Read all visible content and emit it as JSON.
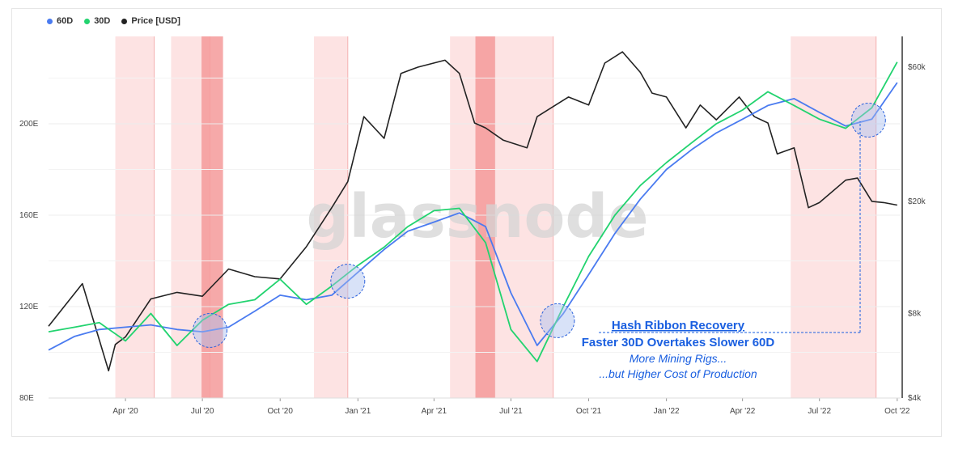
{
  "legend": [
    {
      "label": "60D",
      "color": "#4a7bf0"
    },
    {
      "label": "30D",
      "color": "#22d36f"
    },
    {
      "label": "Price [USD]",
      "color": "#222222"
    }
  ],
  "watermark": "glassnode",
  "chart_data": {
    "type": "line",
    "title": "",
    "x_tick_labels": [
      "Apr '20",
      "Jul '20",
      "Oct '20",
      "Jan '21",
      "Apr '21",
      "Jul '21",
      "Oct '21",
      "Jan '22",
      "Apr '22",
      "Jul '22",
      "Oct '22"
    ],
    "left_axis": {
      "unit": "E (hash rate)",
      "range": [
        80,
        240
      ],
      "tick_labels": [
        "80E",
        "120E",
        "160E",
        "200E"
      ]
    },
    "right_axis": {
      "unit": "USD (log)",
      "tick_labels": [
        "$4k",
        "$8k",
        "$20k",
        "$60k"
      ]
    },
    "x_range": [
      "2020-01-01",
      "2022-10-05"
    ],
    "series": [
      {
        "name": "60D",
        "axis": "left",
        "color": "#4a7bf0",
        "x": [
          "2020-01-01",
          "2020-02-01",
          "2020-03-01",
          "2020-04-01",
          "2020-05-01",
          "2020-06-01",
          "2020-07-01",
          "2020-08-01",
          "2020-09-01",
          "2020-10-01",
          "2020-11-01",
          "2020-12-01",
          "2021-01-01",
          "2021-02-01",
          "2021-03-01",
          "2021-04-01",
          "2021-05-01",
          "2021-06-01",
          "2021-07-01",
          "2021-08-01",
          "2021-09-01",
          "2021-10-01",
          "2021-11-01",
          "2021-12-01",
          "2022-01-01",
          "2022-02-01",
          "2022-03-01",
          "2022-04-01",
          "2022-05-01",
          "2022-06-01",
          "2022-07-01",
          "2022-08-01",
          "2022-09-01",
          "2022-10-01"
        ],
        "values": [
          101,
          107,
          110,
          111,
          112,
          110,
          109,
          111,
          118,
          125,
          123,
          125,
          135,
          145,
          153,
          157,
          161,
          155,
          126,
          103,
          117,
          134,
          152,
          167,
          180,
          189,
          196,
          202,
          208,
          211,
          205,
          199,
          202,
          218
        ]
      },
      {
        "name": "30D",
        "axis": "left",
        "color": "#22d36f",
        "x": [
          "2020-01-01",
          "2020-02-01",
          "2020-03-01",
          "2020-04-01",
          "2020-05-01",
          "2020-06-01",
          "2020-07-01",
          "2020-08-01",
          "2020-09-01",
          "2020-10-01",
          "2020-11-01",
          "2020-12-01",
          "2021-01-01",
          "2021-02-01",
          "2021-03-01",
          "2021-04-01",
          "2021-05-01",
          "2021-06-01",
          "2021-07-01",
          "2021-08-01",
          "2021-09-01",
          "2021-10-01",
          "2021-11-01",
          "2021-12-01",
          "2022-01-01",
          "2022-02-01",
          "2022-03-01",
          "2022-04-01",
          "2022-05-01",
          "2022-06-01",
          "2022-07-01",
          "2022-08-01",
          "2022-09-01",
          "2022-10-01"
        ],
        "values": [
          109,
          111,
          113,
          105,
          117,
          103,
          114,
          121,
          123,
          132,
          121,
          129,
          138,
          146,
          155,
          162,
          163,
          148,
          110,
          96,
          120,
          142,
          160,
          173,
          183,
          192,
          200,
          206,
          214,
          208,
          202,
          198,
          207,
          227
        ]
      },
      {
        "name": "Price [USD]",
        "axis": "right",
        "color": "#222222",
        "x": [
          "2020-01-01",
          "2020-02-10",
          "2020-03-12",
          "2020-03-20",
          "2020-04-01",
          "2020-05-01",
          "2020-06-01",
          "2020-07-01",
          "2020-08-01",
          "2020-09-01",
          "2020-10-01",
          "2020-11-01",
          "2020-12-01",
          "2020-12-20",
          "2021-01-08",
          "2021-02-01",
          "2021-02-21",
          "2021-03-13",
          "2021-04-14",
          "2021-05-01",
          "2021-05-19",
          "2021-06-01",
          "2021-06-22",
          "2021-07-20",
          "2021-08-01",
          "2021-09-07",
          "2021-10-01",
          "2021-10-20",
          "2021-11-10",
          "2021-12-01",
          "2021-12-15",
          "2022-01-01",
          "2022-01-24",
          "2022-02-10",
          "2022-03-01",
          "2022-03-28",
          "2022-04-15",
          "2022-05-01",
          "2022-05-12",
          "2022-06-01",
          "2022-06-18",
          "2022-07-01",
          "2022-08-01",
          "2022-08-15",
          "2022-09-01",
          "2022-09-15",
          "2022-10-01"
        ],
        "values": [
          7200,
          10200,
          5000,
          6200,
          6600,
          9000,
          9500,
          9200,
          11500,
          10800,
          10600,
          13800,
          19000,
          23500,
          40000,
          33500,
          57000,
          60000,
          63500,
          57000,
          38000,
          36500,
          33000,
          31000,
          40000,
          47000,
          44000,
          62000,
          68000,
          57500,
          48500,
          47000,
          36500,
          44000,
          39000,
          47000,
          40000,
          38000,
          29500,
          31000,
          19000,
          19800,
          23800,
          24200,
          20000,
          19800,
          19400
        ]
      }
    ],
    "shaded_regions": [
      {
        "start": "2020-03-20",
        "end": "2020-05-05",
        "intensity": "light"
      },
      {
        "start": "2020-05-25",
        "end": "2020-07-10",
        "intensity": "light"
      },
      {
        "start": "2020-06-30",
        "end": "2020-07-25",
        "intensity": "dark"
      },
      {
        "start": "2020-11-10",
        "end": "2020-12-20",
        "intensity": "light"
      },
      {
        "start": "2021-04-20",
        "end": "2021-08-20",
        "intensity": "light"
      },
      {
        "start": "2021-05-20",
        "end": "2021-06-12",
        "intensity": "dark"
      },
      {
        "start": "2022-05-28",
        "end": "2022-09-06",
        "intensity": "light"
      }
    ],
    "highlight_circles": [
      "2020-07-10",
      "2020-12-20",
      "2021-08-25",
      "2022-08-28"
    ],
    "annotations": {
      "title": "Hash Ribbon Recovery",
      "subtitle": "Faster 30D Overtakes Slower 60D",
      "line1": "More Mining Rigs...",
      "line2": "...but Higher Cost of Production"
    }
  }
}
